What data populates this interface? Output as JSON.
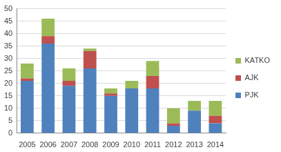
{
  "chart_data": {
    "type": "bar",
    "stacked": true,
    "categories": [
      "2005",
      "2006",
      "2007",
      "2008",
      "2009",
      "2010",
      "2011",
      "2012",
      "2013",
      "2014"
    ],
    "series": [
      {
        "name": "PJK",
        "color": "#4f81bd",
        "values": [
          21,
          36,
          19,
          26,
          15,
          18,
          18,
          3,
          9,
          4
        ]
      },
      {
        "name": "AJK",
        "color": "#c0504d",
        "values": [
          1,
          3,
          2,
          7,
          1,
          0,
          5,
          1,
          0,
          3
        ]
      },
      {
        "name": "KATKO",
        "color": "#9bbb59",
        "values": [
          6,
          7,
          5,
          1,
          2,
          3,
          6,
          6,
          4,
          6
        ]
      }
    ],
    "ylim": [
      0,
      50
    ],
    "yticks": [
      0,
      5,
      10,
      15,
      20,
      25,
      30,
      35,
      40,
      45,
      50
    ],
    "grid": true,
    "legend": "right"
  }
}
